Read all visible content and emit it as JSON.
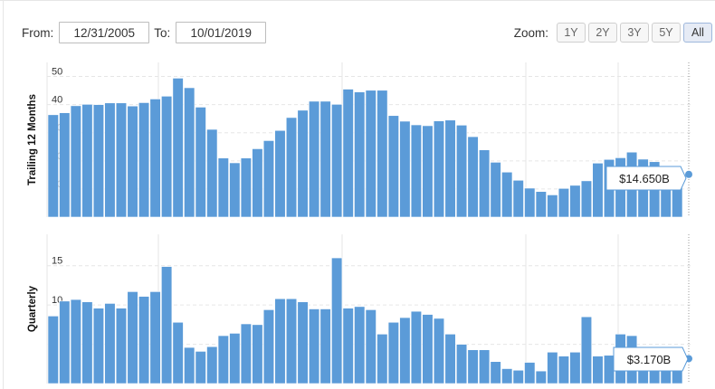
{
  "controls": {
    "from_label": "From:",
    "from_value": "12/31/2005",
    "to_label": "To:",
    "to_value": "10/01/2019",
    "zoom_label": "Zoom:",
    "zoom_buttons": [
      "1Y",
      "2Y",
      "3Y",
      "5Y",
      "All"
    ],
    "active_zoom": "All"
  },
  "colors": {
    "bar": "#5b9bd8",
    "bar_edge": "#ffffff",
    "grid": "#e6e6e6",
    "tooltip_border": "#5b9bd8"
  },
  "chart_data": [
    {
      "type": "bar",
      "ylabel": "Trailing 12 Months",
      "ylim": [
        0,
        55
      ],
      "yticks": [
        0,
        10,
        20,
        30,
        40,
        50
      ],
      "grid": true,
      "tooltip": "$14.650B",
      "values": [
        36.4,
        37.1,
        39.6,
        40.1,
        40,
        40.6,
        40.6,
        39.5,
        40.7,
        42,
        43,
        49.4,
        46,
        39.1,
        31.2,
        21,
        19.3,
        21,
        24.3,
        27.2,
        30.8,
        35.4,
        38,
        41.2,
        41.2,
        40.1,
        45.5,
        44.5,
        45.1,
        45.1,
        36.1,
        34.1,
        32.8,
        32.5,
        34.2,
        34.5,
        32.7,
        28.6,
        23.9,
        19.5,
        16,
        13.1,
        10.3,
        9.1,
        7.9,
        10.2,
        11.3,
        12.9,
        19.2,
        20.5,
        21.1,
        23.1,
        20.6,
        19.7,
        17.3,
        15.2
      ]
    },
    {
      "type": "bar",
      "ylabel": "Quarterly",
      "ylim": [
        0,
        19
      ],
      "yticks": [
        0,
        5,
        10,
        15
      ],
      "grid": true,
      "tooltip": "$3.170B",
      "values": [
        8.6,
        10.5,
        10.7,
        10.4,
        9.6,
        10.2,
        9.6,
        11.7,
        11.1,
        11.7,
        14.9,
        7.8,
        4.6,
        4.1,
        4.7,
        6.1,
        6.4,
        7.6,
        7.5,
        9.4,
        10.8,
        10.8,
        10.4,
        9.5,
        9.5,
        16,
        9.6,
        9.8,
        9.4,
        6.3,
        7.8,
        8.4,
        9.2,
        8.8,
        8.3,
        6.3,
        5,
        4.3,
        4.3,
        2.8,
        1.9,
        1.7,
        2.7,
        1.6,
        4,
        3.5,
        4,
        8.5,
        3.5,
        3.6,
        6.3,
        6.1,
        4.1,
        3,
        3.3,
        3.17
      ]
    }
  ]
}
